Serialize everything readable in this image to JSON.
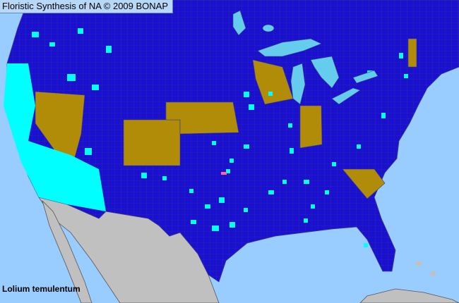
{
  "header": {
    "title": "Floristic Synthesis of NA © 2009 BONAP"
  },
  "map": {
    "species": "Lolium temulentum",
    "colors": {
      "ocean": "#99ccff",
      "lakes": "#66ccee",
      "present_native_region": "#1a10d0",
      "county_present": "#00ffff",
      "state_present": "#b08c08",
      "county_rare": "#ff6699",
      "outside_region": "#c0c0c0",
      "borders": "#3a3a8a"
    }
  }
}
